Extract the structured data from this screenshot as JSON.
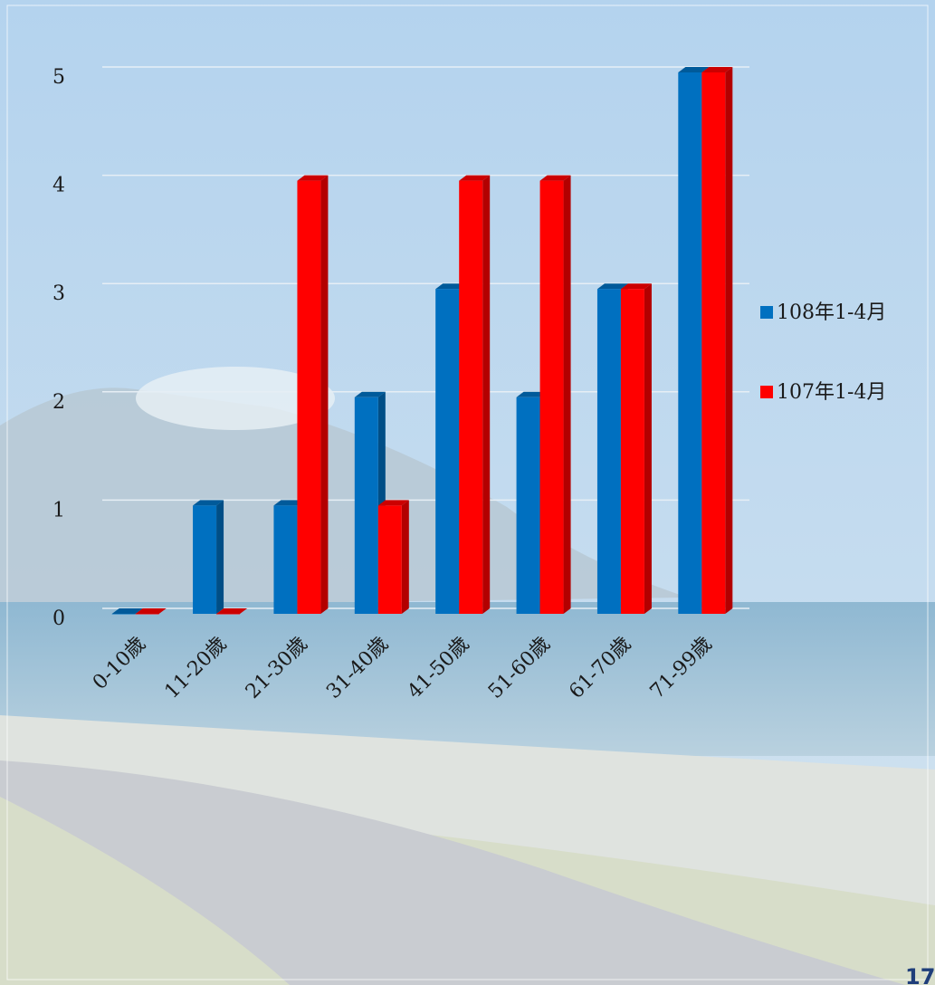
{
  "chart_data": {
    "type": "bar3d",
    "categories": [
      "0-10歲",
      "11-20歲",
      "21-30歲",
      "31-40歲",
      "41-50歲",
      "51-60歲",
      "61-70歲",
      "71-99歲"
    ],
    "series": [
      {
        "name": "108年1-4月",
        "color": "#0070c0",
        "values": [
          0,
          1,
          1,
          2,
          3,
          2,
          3,
          5
        ]
      },
      {
        "name": "107年1-4月",
        "color": "#ff0000",
        "values": [
          0,
          0,
          4,
          1,
          4,
          4,
          3,
          5
        ]
      }
    ],
    "ylim": [
      0,
      5
    ],
    "yticks": [
      0,
      1,
      2,
      3,
      4,
      5
    ],
    "grid": true,
    "legend": "right"
  },
  "page_number": "17"
}
